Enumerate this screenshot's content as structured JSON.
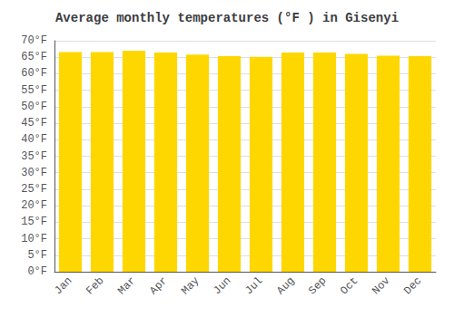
{
  "chart_data": {
    "type": "bar",
    "title": "Average monthly temperatures (°F ) in Gisenyi",
    "categories": [
      "Jan",
      "Feb",
      "Mar",
      "Apr",
      "May",
      "Jun",
      "Jul",
      "Aug",
      "Sep",
      "Oct",
      "Nov",
      "Dec"
    ],
    "values": [
      66.6,
      66.6,
      67.0,
      66.4,
      65.8,
      65.3,
      65.1,
      66.4,
      66.4,
      66.0,
      65.5,
      65.3
    ],
    "color": "#FFD700",
    "ylim": [
      0,
      70
    ],
    "yticks": [
      {
        "value": 0,
        "label": "0°F"
      },
      {
        "value": 5,
        "label": "5°F"
      },
      {
        "value": 10,
        "label": "10°F"
      },
      {
        "value": 15,
        "label": "15°F"
      },
      {
        "value": 20,
        "label": "20°F"
      },
      {
        "value": 25,
        "label": "25°F"
      },
      {
        "value": 30,
        "label": "30°F"
      },
      {
        "value": 35,
        "label": "35°F"
      },
      {
        "value": 40,
        "label": "40°F"
      },
      {
        "value": 45,
        "label": "45°F"
      },
      {
        "value": 50,
        "label": "50°F"
      },
      {
        "value": 55,
        "label": "55°F"
      },
      {
        "value": 60,
        "label": "60°F"
      },
      {
        "value": 65,
        "label": "65°F"
      },
      {
        "value": 70,
        "label": "70°F"
      }
    ],
    "grid": true
  }
}
